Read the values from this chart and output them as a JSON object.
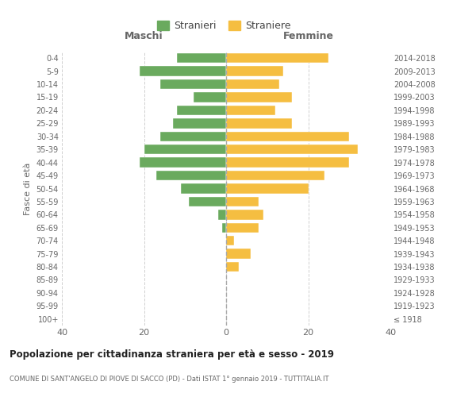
{
  "age_groups": [
    "100+",
    "95-99",
    "90-94",
    "85-89",
    "80-84",
    "75-79",
    "70-74",
    "65-69",
    "60-64",
    "55-59",
    "50-54",
    "45-49",
    "40-44",
    "35-39",
    "30-34",
    "25-29",
    "20-24",
    "15-19",
    "10-14",
    "5-9",
    "0-4"
  ],
  "birth_years": [
    "≤ 1918",
    "1919-1923",
    "1924-1928",
    "1929-1933",
    "1934-1938",
    "1939-1943",
    "1944-1948",
    "1949-1953",
    "1954-1958",
    "1959-1963",
    "1964-1968",
    "1969-1973",
    "1974-1978",
    "1979-1983",
    "1984-1988",
    "1989-1993",
    "1994-1998",
    "1999-2003",
    "2004-2008",
    "2009-2013",
    "2014-2018"
  ],
  "males": [
    0,
    0,
    0,
    0,
    0,
    0,
    0,
    1,
    2,
    9,
    11,
    17,
    21,
    20,
    16,
    13,
    12,
    8,
    16,
    21,
    12
  ],
  "females": [
    0,
    0,
    0,
    0,
    3,
    6,
    2,
    8,
    9,
    8,
    20,
    24,
    30,
    32,
    30,
    16,
    12,
    16,
    13,
    14,
    25
  ],
  "male_color": "#6aaa5e",
  "female_color": "#f5be41",
  "title": "Popolazione per cittadinanza straniera per età e sesso - 2019",
  "subtitle": "COMUNE DI SANT'ANGELO DI PIOVE DI SACCO (PD) - Dati ISTAT 1° gennaio 2019 - TUTTITALIA.IT",
  "xlabel_left": "Maschi",
  "xlabel_right": "Femmine",
  "ylabel_left": "Fasce di età",
  "legend_stranieri": "Stranieri",
  "legend_straniere": "Straniere",
  "xlim": 40,
  "background_color": "#ffffff",
  "grid_color": "#d0d0d0"
}
